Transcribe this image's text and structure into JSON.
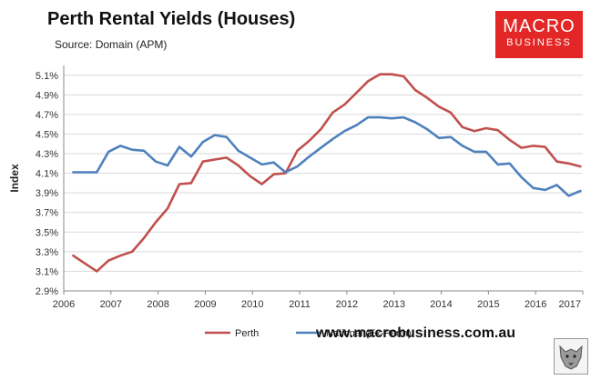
{
  "title": "Perth Rental Yields (Houses)",
  "source": "Source: Domain (APM)",
  "logo": {
    "line1": "MACRO",
    "line2": "BUSINESS"
  },
  "footer_url": "www.macrobusiness.com.au",
  "colors": {
    "perth": "#c0504d",
    "national": "#4f81bd",
    "brand": "#e32726"
  },
  "chart_data": {
    "type": "line",
    "title": "Perth Rental Yields (Houses)",
    "xlabel": "",
    "ylabel": "Index",
    "ylim": [
      2.9,
      5.2
    ],
    "yticks": [
      "2.9%",
      "3.1%",
      "3.3%",
      "3.5%",
      "3.7%",
      "3.9%",
      "4.1%",
      "4.3%",
      "4.5%",
      "4.7%",
      "4.9%",
      "5.1%"
    ],
    "ytick_values": [
      2.9,
      3.1,
      3.3,
      3.5,
      3.7,
      3.9,
      4.1,
      4.3,
      4.5,
      4.7,
      4.9,
      5.1
    ],
    "xlim": [
      2006,
      2017
    ],
    "xticks": [
      "2006",
      "2007",
      "2008",
      "2009",
      "2010",
      "2011",
      "2012",
      "2013",
      "2014",
      "2015",
      "2016",
      "2017"
    ],
    "xtick_values": [
      2006,
      2007,
      2008,
      2009,
      2010,
      2011,
      2012,
      2013,
      2014,
      2015,
      2016,
      2017
    ],
    "legend": "bottom",
    "series": [
      {
        "name": "Perth",
        "x": [
          2006.2,
          2006.45,
          2006.7,
          2006.95,
          2007.2,
          2007.45,
          2007.7,
          2007.95,
          2008.2,
          2008.45,
          2008.7,
          2008.95,
          2009.2,
          2009.45,
          2009.7,
          2009.95,
          2010.2,
          2010.45,
          2010.7,
          2010.95,
          2011.2,
          2011.45,
          2011.7,
          2011.95,
          2012.2,
          2012.45,
          2012.7,
          2012.95,
          2013.2,
          2013.45,
          2013.7,
          2013.95,
          2014.2,
          2014.45,
          2014.7,
          2014.95,
          2015.2,
          2015.45,
          2015.7,
          2015.95,
          2016.2,
          2016.45,
          2016.7,
          2016.95
        ],
        "values": [
          3.26,
          3.18,
          3.1,
          3.21,
          3.26,
          3.3,
          3.44,
          3.6,
          3.74,
          3.99,
          4.0,
          4.22,
          4.24,
          4.26,
          4.18,
          4.07,
          3.99,
          4.09,
          4.1,
          4.33,
          4.43,
          4.55,
          4.72,
          4.8,
          4.92,
          5.04,
          5.11,
          5.11,
          5.09,
          4.95,
          4.87,
          4.78,
          4.72,
          4.57,
          4.53,
          4.56,
          4.54,
          4.44,
          4.36,
          4.38,
          4.37,
          4.22,
          4.2,
          4.17
        ]
      },
      {
        "name": "National (Ex-Perth)",
        "x": [
          2006.2,
          2006.45,
          2006.7,
          2006.95,
          2007.2,
          2007.45,
          2007.7,
          2007.95,
          2008.2,
          2008.45,
          2008.7,
          2008.95,
          2009.2,
          2009.45,
          2009.7,
          2009.95,
          2010.2,
          2010.45,
          2010.7,
          2010.95,
          2011.2,
          2011.45,
          2011.7,
          2011.95,
          2012.2,
          2012.45,
          2012.7,
          2012.95,
          2013.2,
          2013.45,
          2013.7,
          2013.95,
          2014.2,
          2014.45,
          2014.7,
          2014.95,
          2015.2,
          2015.45,
          2015.7,
          2015.95,
          2016.2,
          2016.45,
          2016.7,
          2016.95
        ],
        "values": [
          4.11,
          4.11,
          4.11,
          4.32,
          4.38,
          4.34,
          4.33,
          4.22,
          4.18,
          4.37,
          4.27,
          4.42,
          4.49,
          4.47,
          4.33,
          4.26,
          4.19,
          4.21,
          4.11,
          4.17,
          4.27,
          4.36,
          4.45,
          4.53,
          4.59,
          4.67,
          4.67,
          4.66,
          4.67,
          4.62,
          4.55,
          4.46,
          4.47,
          4.38,
          4.32,
          4.32,
          4.19,
          4.2,
          4.06,
          3.95,
          3.93,
          3.98,
          3.87,
          3.92
        ]
      }
    ]
  }
}
